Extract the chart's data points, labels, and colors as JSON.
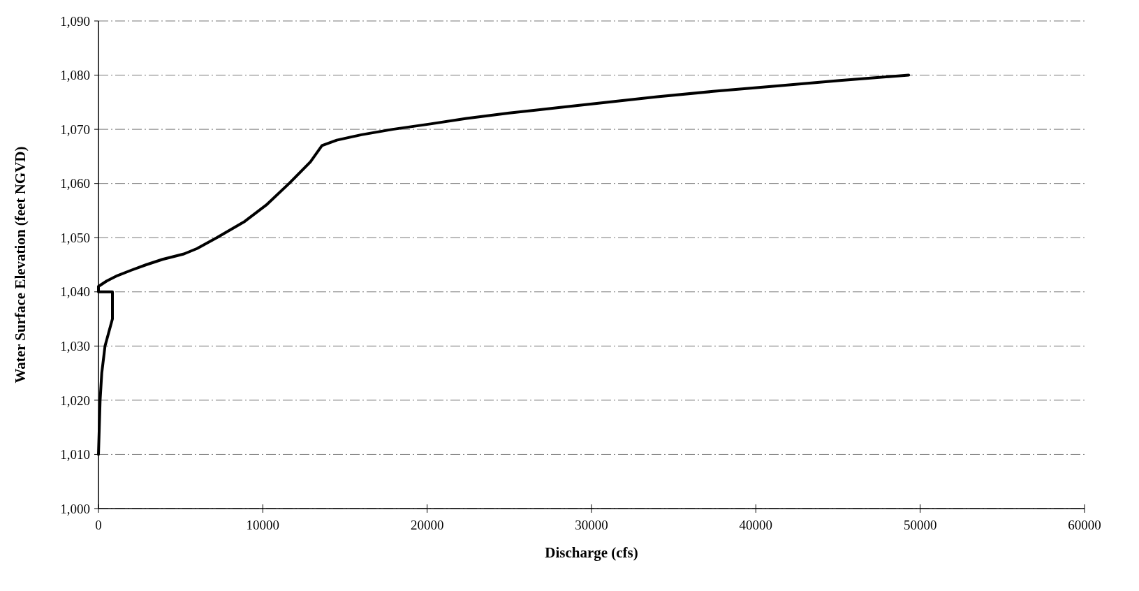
{
  "chart_data": {
    "type": "line",
    "xlabel": "Discharge (cfs)",
    "ylabel": "Water Surface Elevation (feet NGVD)",
    "x": [
      0,
      50,
      100,
      200,
      400,
      850,
      850,
      0,
      0,
      500,
      1150,
      2000,
      2900,
      3900,
      5200,
      6000,
      7200,
      8900,
      10200,
      11600,
      12900,
      13600,
      14500,
      16000,
      17900,
      20200,
      22400,
      25000,
      28000,
      31000,
      34000,
      37400,
      41300,
      45100,
      49300
    ],
    "series": [
      {
        "color": "#000000",
        "values": [
          1010,
          1015,
          1020,
          1025,
          1030,
          1035,
          1040,
          1040,
          1041,
          1042,
          1043,
          1044,
          1045,
          1046,
          1047,
          1048,
          1050,
          1053,
          1056,
          1060,
          1064,
          1067,
          1068,
          1069,
          1070,
          1071,
          1072,
          1073,
          1074,
          1075,
          1076,
          1077,
          1078,
          1079,
          1080
        ]
      }
    ],
    "xlim": [
      0,
      60000
    ],
    "xticks": [
      0,
      10000,
      20000,
      30000,
      40000,
      50000,
      60000
    ],
    "ylim": [
      1000,
      1090
    ],
    "yticks": [
      {
        "value": 1000,
        "label": "1,000"
      },
      {
        "value": 1010,
        "label": "1,010"
      },
      {
        "value": 1020,
        "label": "1,020"
      },
      {
        "value": 1030,
        "label": "1,030"
      },
      {
        "value": 1040,
        "label": "1,040"
      },
      {
        "value": 1050,
        "label": "1,050"
      },
      {
        "value": 1060,
        "label": "1,060"
      },
      {
        "value": 1070,
        "label": "1,070"
      },
      {
        "value": 1080,
        "label": "1,080"
      },
      {
        "value": 1090,
        "label": "1,090"
      }
    ],
    "grid": "y",
    "marker": "none",
    "line_style": "solid"
  }
}
